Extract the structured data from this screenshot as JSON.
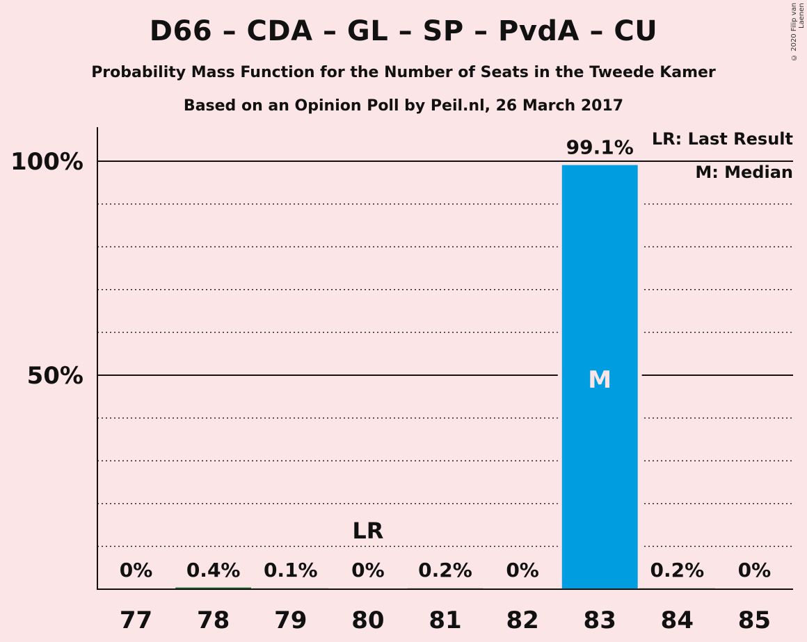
{
  "title": "D66 – CDA – GL – SP – PvdA – CU",
  "subtitle": "Probability Mass Function for the Number of Seats in the Tweede Kamer",
  "subtitle2": "Based on an Opinion Poll by Peil.nl, 26 March 2017",
  "copyright": "© 2020 Filip van Laenen",
  "legend": {
    "last_result": "LR: Last Result",
    "median": "M: Median"
  },
  "colors": {
    "background": "#fbe5e7",
    "bar": "#009ee0",
    "bar_small": "#1a7a3a"
  },
  "chart_data": {
    "type": "bar",
    "categories": [
      "77",
      "78",
      "79",
      "80",
      "81",
      "82",
      "83",
      "84",
      "85"
    ],
    "values": [
      0,
      0.4,
      0.1,
      0,
      0.2,
      0,
      99.1,
      0.2,
      0
    ],
    "value_labels": [
      "0%",
      "0.4%",
      "0.1%",
      "0%",
      "0.2%",
      "0%",
      "99.1%",
      "0.2%",
      "0%"
    ],
    "ylim": [
      0,
      100
    ],
    "yticks": [
      {
        "value": 50,
        "label": "50%"
      },
      {
        "value": 100,
        "label": "100%"
      }
    ],
    "minor_gridlines": [
      10,
      20,
      30,
      40,
      60,
      70,
      80,
      90
    ],
    "last_result": {
      "category": "80",
      "label": "LR"
    },
    "median": {
      "category": "83",
      "label": "M"
    },
    "xlabel": "",
    "ylabel": ""
  }
}
